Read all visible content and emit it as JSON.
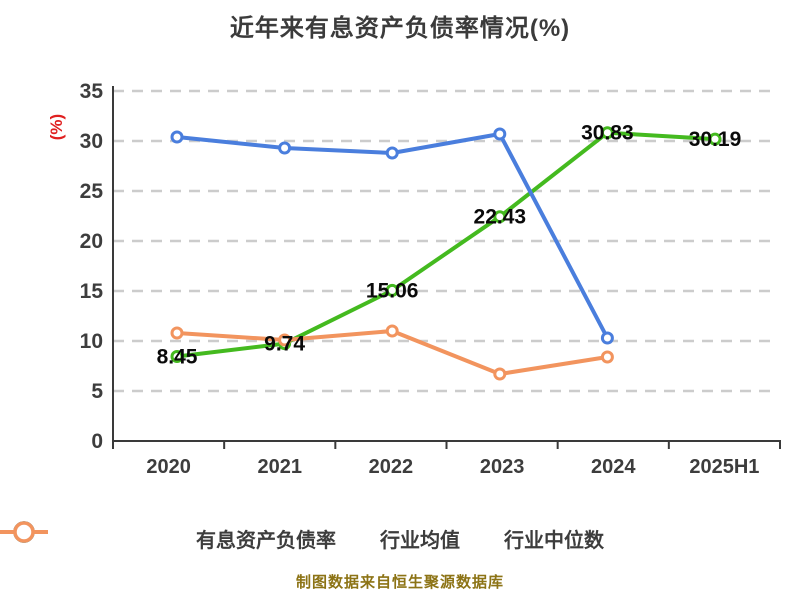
{
  "title": "近年来有息资产负债率情况(%)",
  "footer": "制图数据来自恒生聚源数据库",
  "colors": {
    "title_text": "#3b3b3b",
    "axis_label_red": "#e02020",
    "tick_text": "#3d3d3d",
    "spine": "#3a3a3a",
    "gridline": "#cccccc",
    "data_label_text": "#0a0a0a",
    "series_green": "#44ba1f",
    "series_blue": "#4a7edd",
    "series_orange": "#f2945e",
    "footer_text": "#8c7315",
    "marker_fill": "#ffffff"
  },
  "chart_data": {
    "type": "line",
    "title": "近年来有息资产负债率情况(%)",
    "ylabel": "(%)",
    "xlabel": "",
    "categories": [
      "2020",
      "2021",
      "2022",
      "2023",
      "2024",
      "2025H1"
    ],
    "series": [
      {
        "name": "有息资产负债率",
        "color": "#44ba1f",
        "values": [
          8.45,
          9.74,
          15.06,
          22.43,
          30.83,
          30.19
        ],
        "labels": [
          "8.45",
          "9.74",
          "15.06",
          "22.43",
          "30.83",
          "30.19"
        ]
      },
      {
        "name": "行业均值",
        "color": "#4a7edd",
        "values": [
          30.4,
          29.3,
          28.8,
          30.7,
          10.3,
          null
        ],
        "labels": null
      },
      {
        "name": "行业中位数",
        "color": "#f2945e",
        "values": [
          10.8,
          10.1,
          11.0,
          6.7,
          8.4,
          null
        ],
        "labels": null
      }
    ],
    "ylim": [
      0,
      35
    ],
    "yticks": [
      0,
      5,
      10,
      15,
      20,
      25,
      30,
      35
    ],
    "grid": "dashed-horizontal",
    "legend_position": "bottom",
    "marker": "circle-white-fill"
  }
}
